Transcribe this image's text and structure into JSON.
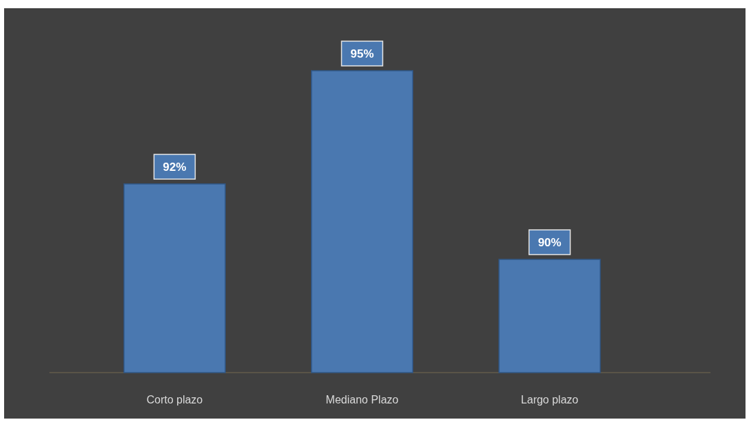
{
  "chart_data": {
    "type": "bar",
    "categories": [
      "Corto plazo",
      "Mediano Plazo",
      "Largo plazo"
    ],
    "values": [
      92,
      95,
      90
    ],
    "value_labels": [
      "92%",
      "95%",
      "90%"
    ],
    "color": "#4a78b0",
    "ylim": [
      87,
      95
    ]
  }
}
